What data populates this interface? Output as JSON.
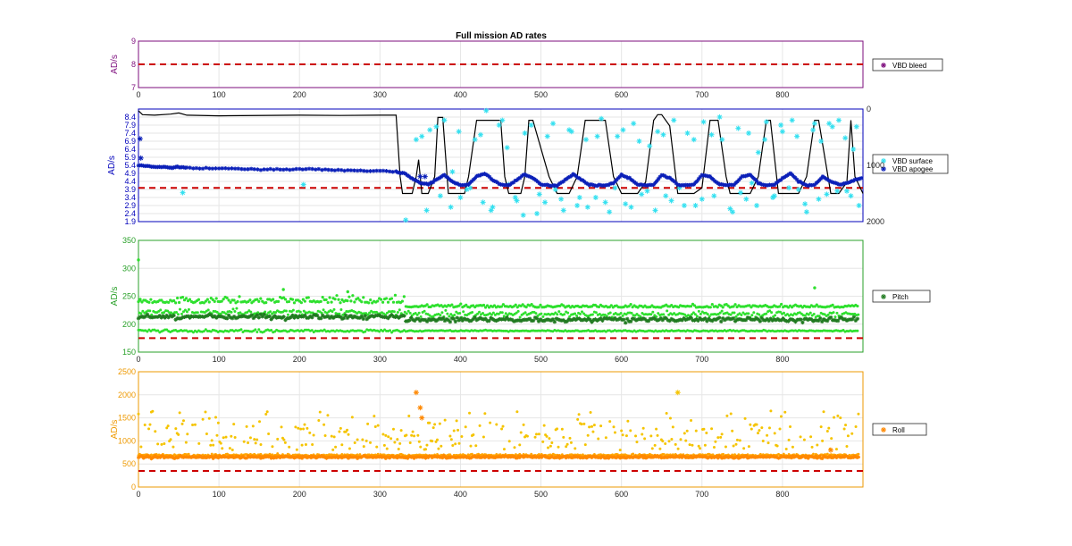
{
  "figure": {
    "title": "Full mission AD rates"
  },
  "colors": {
    "bleed": "#7e0e7e",
    "vbd": "#0000bb",
    "surface": "#33e0f0",
    "apogee": "#0a1fb8",
    "pitch_axis": "#28a028",
    "pitch_dark": "#207a20",
    "pitch_light": "#2ee02e",
    "roll_axis": "#ee9900",
    "roll_marker": "#ff8800",
    "roll_light": "#f5c400",
    "roll_dots": "#ffa500",
    "threshold": "#cc0000",
    "depth": "#000000",
    "grid": "#e6e6e6"
  },
  "chart_data": [
    {
      "type": "scatter",
      "panel": "bleed",
      "title": "Full mission AD rates",
      "ylabel": "AD/s",
      "xlim": [
        0,
        900
      ],
      "ylim": [
        7,
        9
      ],
      "xticks": [
        "0",
        "100",
        "200",
        "300",
        "400",
        "500",
        "600",
        "700",
        "800"
      ],
      "yticks": [
        "7",
        "8",
        "9"
      ],
      "grid": true,
      "legend": {
        "position": "right",
        "entries": [
          "VBD bleed"
        ]
      },
      "series": [
        {
          "name": "VBD bleed",
          "x": [],
          "y": []
        }
      ],
      "threshold": {
        "y": 8,
        "style": "dashed"
      }
    },
    {
      "type": "scatter",
      "panel": "vbd",
      "ylabel": "AD/s",
      "xlim": [
        0,
        900
      ],
      "ylim": [
        1.9,
        8.9
      ],
      "xticks": [],
      "yticks": [
        "1.9",
        "2.4",
        "2.9",
        "3.4",
        "3.9",
        "4.4",
        "4.9",
        "5.4",
        "5.9",
        "6.4",
        "6.9",
        "7.4",
        "7.9",
        "8.4"
      ],
      "y2ticks": [
        "0",
        "1000",
        "2000"
      ],
      "y2lim": [
        0,
        2000
      ],
      "y2_reversed": true,
      "grid": true,
      "legend": {
        "position": "right",
        "entries": [
          "VBD surface",
          "VBD apogee"
        ]
      },
      "series": [
        {
          "name": "VBD surface",
          "x": [
            332,
            345,
            358,
            370,
            380,
            390,
            400,
            412,
            425,
            432,
            440,
            452,
            460,
            470,
            480,
            495,
            505,
            515,
            525,
            535,
            545,
            556,
            568,
            575,
            585,
            595,
            605,
            615,
            625,
            635,
            645,
            655,
            665,
            678,
            690,
            700,
            712,
            722,
            735,
            745,
            755,
            762,
            770,
            780,
            790,
            800,
            812,
            820,
            830,
            840,
            848,
            855,
            862,
            870,
            880,
            888,
            895,
            352,
            362,
            375,
            388,
            398,
            408,
            418,
            428,
            438,
            448,
            458,
            468,
            478,
            488,
            498,
            508,
            518,
            528,
            538,
            548,
            558,
            570,
            580,
            592,
            602,
            612,
            622,
            632,
            642,
            652,
            662,
            672,
            682,
            692,
            702,
            715,
            725,
            738,
            748,
            758,
            768,
            778,
            788,
            798,
            808,
            818,
            828,
            838,
            845,
            858,
            868,
            878,
            885,
            892,
            55,
            205
          ],
          "y": [
            2.0,
            7.0,
            2.6,
            7.8,
            8.2,
            5.0,
            3.4,
            4.0,
            7.3,
            8.8,
            2.8,
            8.2,
            4.2,
            3.2,
            7.4,
            2.4,
            3.1,
            8.0,
            3.3,
            7.6,
            2.9,
            7.0,
            3.4,
            8.3,
            2.5,
            7.2,
            3.0,
            8.0,
            3.6,
            6.6,
            7.5,
            3.5,
            8.2,
            2.9,
            7.0,
            3.3,
            7.3,
            8.4,
            2.7,
            7.7,
            3.3,
            4.3,
            6.2,
            8.1,
            3.5,
            7.5,
            8.2,
            3.9,
            2.5,
            8.0,
            6.9,
            3.6,
            7.8,
            8.2,
            3.8,
            6.4,
            2.9,
            7.2,
            7.6,
            3.5,
            2.8,
            7.5,
            3.9,
            7.0,
            3.1,
            2.6,
            7.9,
            6.5,
            3.4,
            2.3,
            7.9,
            3.6,
            7.2,
            3.9,
            2.6,
            7.5,
            3.4,
            2.8,
            7.2,
            3.1,
            4.0,
            7.6,
            2.8,
            6.9,
            3.8,
            2.6,
            7.3,
            3.2,
            4.0,
            7.4,
            2.9,
            8.1,
            3.5,
            7.0,
            2.5,
            3.7,
            7.4,
            2.9,
            7.0,
            3.4,
            7.9,
            4.0,
            7.2,
            3.0,
            7.6,
            3.3,
            8.0,
            3.8,
            7.1,
            3.5,
            7.8,
            3.7,
            4.2
          ]
        },
        {
          "name": "VBD apogee",
          "x": [
            2,
            3,
            350,
            356
          ],
          "y": [
            7.05,
            5.85,
            4.7,
            4.7
          ],
          "trend": {
            "x": [
              0,
              10,
              20,
              30,
              40,
              50,
              60,
              80,
              100,
              120,
              140,
              160,
              180,
              200,
              220,
              240,
              260,
              280,
              300,
              320,
              330,
              340,
              350,
              360,
              370,
              380,
              390,
              400,
              410,
              420,
              430,
              440,
              450,
              460,
              470,
              480,
              490,
              500,
              510,
              520,
              530,
              540,
              550,
              560,
              570,
              580,
              590,
              600,
              610,
              620,
              630,
              640,
              650,
              660,
              670,
              680,
              690,
              700,
              710,
              720,
              730,
              740,
              750,
              760,
              770,
              780,
              790,
              800,
              810,
              820,
              830,
              840,
              850,
              860,
              870,
              880,
              890,
              900
            ],
            "y": [
              5.4,
              5.35,
              5.3,
              5.3,
              5.25,
              5.3,
              5.25,
              5.2,
              5.2,
              5.2,
              5.15,
              5.15,
              5.15,
              5.15,
              5.15,
              5.1,
              5.1,
              5.05,
              5.05,
              5.0,
              4.9,
              4.6,
              4.3,
              4.2,
              4.5,
              4.8,
              4.4,
              4.15,
              4.2,
              4.7,
              4.9,
              4.5,
              4.2,
              4.15,
              4.5,
              4.85,
              4.6,
              4.2,
              4.15,
              4.15,
              4.5,
              4.85,
              4.5,
              4.2,
              4.15,
              4.15,
              4.3,
              4.8,
              4.6,
              4.2,
              4.15,
              4.2,
              4.8,
              4.6,
              4.2,
              4.15,
              4.2,
              4.8,
              4.7,
              4.25,
              4.15,
              4.2,
              4.7,
              4.8,
              4.3,
              4.15,
              4.2,
              4.6,
              4.9,
              4.4,
              4.15,
              4.2,
              4.7,
              4.4,
              4.2,
              4.3,
              4.5,
              4.6
            ]
          }
        }
      ],
      "depth": {
        "x": [
          0,
          5,
          20,
          40,
          50,
          60,
          100,
          200,
          250,
          300,
          320,
          325,
          328,
          332,
          340,
          345,
          348,
          352,
          355,
          360,
          368,
          372,
          378,
          385,
          395,
          400,
          405,
          410,
          420,
          430,
          450,
          455,
          460,
          465,
          475,
          480,
          485,
          490,
          510,
          520,
          525,
          535,
          545,
          555,
          560,
          580,
          590,
          600,
          610,
          620,
          630,
          640,
          645,
          650,
          660,
          670,
          680,
          690,
          700,
          710,
          720,
          730,
          735,
          740,
          760,
          770,
          780,
          785,
          795,
          800,
          820,
          830,
          840,
          845,
          860,
          870,
          880,
          885,
          890,
          900
        ],
        "y": [
          30,
          100,
          110,
          90,
          70,
          110,
          120,
          110,
          115,
          110,
          110,
          1200,
          1500,
          1500,
          1500,
          1200,
          900,
          1500,
          1500,
          1500,
          1200,
          150,
          150,
          1500,
          1500,
          1500,
          1500,
          1200,
          200,
          200,
          200,
          1200,
          1500,
          1500,
          1500,
          1200,
          200,
          200,
          1200,
          1500,
          1500,
          1500,
          1200,
          200,
          200,
          200,
          1200,
          1500,
          1500,
          1500,
          1300,
          200,
          100,
          100,
          300,
          1500,
          1500,
          1500,
          1400,
          200,
          200,
          1200,
          1500,
          1500,
          1500,
          1200,
          200,
          200,
          1500,
          1500,
          1500,
          1200,
          200,
          200,
          1500,
          1500,
          1300,
          200,
          1200,
          1500
        ]
      },
      "threshold": {
        "y": 4.0,
        "style": "dashed"
      }
    },
    {
      "type": "scatter",
      "panel": "pitch",
      "ylabel": "AD/s",
      "xlim": [
        0,
        900
      ],
      "ylim": [
        150,
        350
      ],
      "xticks": [
        "0",
        "100",
        "200",
        "300",
        "400",
        "500",
        "600",
        "700",
        "800"
      ],
      "yticks": [
        "150",
        "200",
        "250",
        "300",
        "350"
      ],
      "grid": true,
      "legend": {
        "position": "right",
        "entries": [
          "Pitch"
        ]
      },
      "series": [
        {
          "name": "Pitch",
          "mean": 210,
          "spread": 10,
          "upper": 230,
          "lower": 188,
          "outliers": {
            "x": [
              0,
              2,
              180,
              260,
              840
            ],
            "y": [
              315,
              243,
              262,
              258,
              265
            ]
          }
        }
      ],
      "threshold": {
        "y": 175,
        "style": "dashed"
      }
    },
    {
      "type": "scatter",
      "panel": "roll",
      "ylabel": "AD/s",
      "xlim": [
        0,
        900
      ],
      "ylim": [
        0,
        2500
      ],
      "xticks": [
        "0",
        "100",
        "200",
        "300",
        "400",
        "500",
        "600",
        "700",
        "800"
      ],
      "yticks": [
        "0",
        "500",
        "1000",
        "1500",
        "2000",
        "2500"
      ],
      "grid": true,
      "legend": {
        "position": "right",
        "entries": [
          "Roll"
        ]
      },
      "series": [
        {
          "name": "Roll",
          "mean": 650,
          "spread": 40,
          "cloud_min": 800,
          "cloud_max": 1650,
          "outliers": {
            "x": [
              350,
              352,
              345,
              670,
              860
            ],
            "y": [
              1720,
              1500,
              2050,
              2050,
              800
            ]
          }
        }
      ],
      "threshold": {
        "y": 350,
        "style": "dashed"
      }
    }
  ]
}
